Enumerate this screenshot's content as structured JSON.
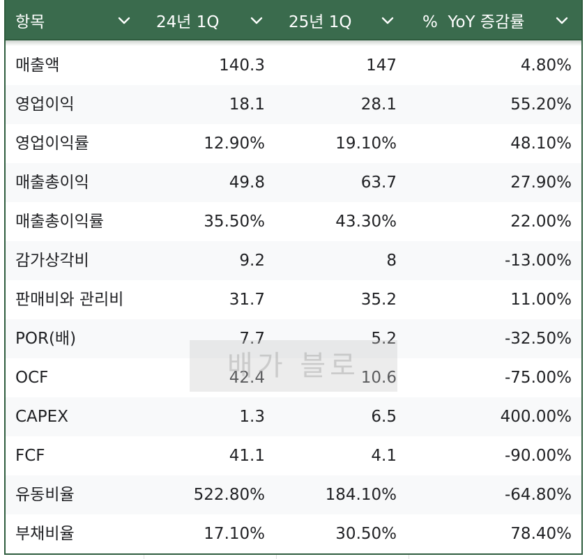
{
  "header": {
    "columns": [
      {
        "label": "항목"
      },
      {
        "label": "24년 1Q"
      },
      {
        "label": "25년 1Q"
      },
      {
        "label": "%  YoY 증감률"
      }
    ]
  },
  "rows": [
    {
      "name": "매출액",
      "q24": "140.3",
      "q25": "147",
      "yoy": "4.80%"
    },
    {
      "name": "영업이익",
      "q24": "18.1",
      "q25": "28.1",
      "yoy": "55.20%"
    },
    {
      "name": "영업이익률",
      "q24": "12.90%",
      "q25": "19.10%",
      "yoy": "48.10%"
    },
    {
      "name": "매출총이익",
      "q24": "49.8",
      "q25": "63.7",
      "yoy": "27.90%"
    },
    {
      "name": "매출총이익률",
      "q24": "35.50%",
      "q25": "43.30%",
      "yoy": "22.00%"
    },
    {
      "name": "감가상각비",
      "q24": "9.2",
      "q25": "8",
      "yoy": "-13.00%"
    },
    {
      "name": "판매비와 관리비",
      "q24": "31.7",
      "q25": "35.2",
      "yoy": "11.00%"
    },
    {
      "name": "POR(배)",
      "q24": "7.7",
      "q25": "5.2",
      "yoy": "-32.50%"
    },
    {
      "name": "OCF",
      "q24": "42.4",
      "q25": "10.6",
      "yoy": "-75.00%"
    },
    {
      "name": "CAPEX",
      "q24": "1.3",
      "q25": "6.5",
      "yoy": "400.00%"
    },
    {
      "name": "FCF",
      "q24": "41.1",
      "q25": "4.1",
      "yoy": "-90.00%"
    },
    {
      "name": "유동비율",
      "q24": "522.80%",
      "q25": "184.10%",
      "yoy": "-64.80%"
    },
    {
      "name": "부채비율",
      "q24": "17.10%",
      "q25": "30.50%",
      "yoy": "78.40%"
    }
  ],
  "watermark": "배가 블로",
  "colors": {
    "header_bg": "#3a6b4d",
    "border": "#2d5b3d",
    "alt_row": "#f8f9fa",
    "text": "#202124"
  },
  "icons": {
    "filter": "chevron-down-icon"
  }
}
